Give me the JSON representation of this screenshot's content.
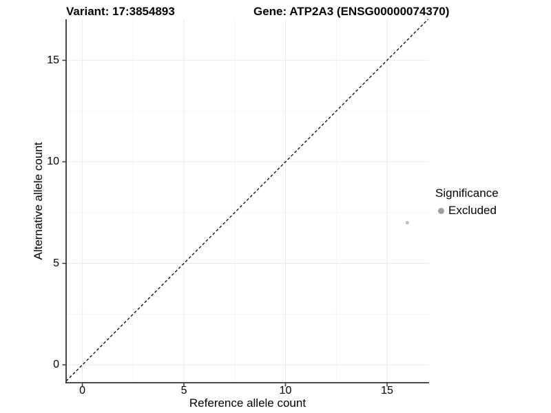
{
  "header": {
    "variant_title": "Variant: 17:3854893",
    "gene_title": "Gene: ATP2A3 (ENSG00000074370)"
  },
  "legend": {
    "title": "Significance",
    "items": [
      {
        "label": "Excluded",
        "swatch_color": "#a0a0a0"
      }
    ]
  },
  "chart_data": {
    "type": "scatter",
    "title": "Variant: 17:3854893 | Gene: ATP2A3 (ENSG00000074370)",
    "xlabel": "Reference allele count",
    "ylabel": "Alternative allele count",
    "xticks": [
      0,
      5,
      10,
      15
    ],
    "yticks": [
      0,
      5,
      10,
      15
    ],
    "xlim": [
      -0.8,
      17.07
    ],
    "ylim": [
      -0.88,
      17.02
    ],
    "grid": "major and minor gridlines, very light gray on white panel",
    "legend_position": "right",
    "series": [
      {
        "name": "Excluded",
        "point_color": "#c2c2c2",
        "point_radius": 2.6,
        "points": [
          {
            "x": 16,
            "y": 7
          }
        ]
      }
    ],
    "reference_line": {
      "kind": "identity y=x",
      "style": "dashed",
      "color": "#000000"
    }
  },
  "colors": {
    "background": "#ffffff",
    "axis_line": "#333333",
    "tick_mark": "#333333",
    "grid_major": "#e9e9e9",
    "grid_minor": "#f4f4f4",
    "text": "#000000"
  }
}
